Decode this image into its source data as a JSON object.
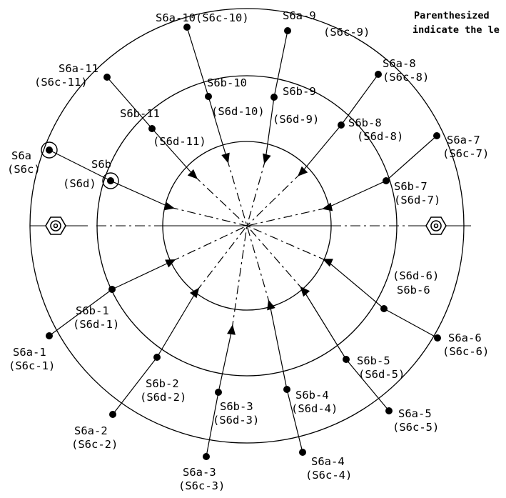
{
  "note": {
    "lines": [
      "Parenthesized",
      "indicate the le"
    ]
  },
  "points": [
    {
      "id": "6a-10",
      "label": "S6a-10(S6c-10)"
    },
    {
      "id": "6a-9",
      "label1": "S6a-9",
      "label2": "(S6c-9)"
    },
    {
      "id": "6a-8",
      "label1": "S6a-8",
      "label2": "(S6c-8)"
    },
    {
      "id": "6a-7",
      "label1": "S6a-7",
      "label2": "(S6c-7)"
    },
    {
      "id": "6a-6",
      "label1": "S6a-6",
      "label2": "(S6c-6)"
    },
    {
      "id": "6a-5",
      "label1": "S6a-5",
      "label2": "(S6c-5)"
    },
    {
      "id": "6a-4",
      "label1": "S6a-4",
      "label2": "(S6c-4)"
    },
    {
      "id": "6a-3",
      "label1": "S6a-3",
      "label2": "(S6c-3)"
    },
    {
      "id": "6a-2",
      "label1": "S6a-2",
      "label2": "(S6c-2)"
    },
    {
      "id": "6a-1",
      "label1": "S6a-1",
      "label2": "(S6c-1)"
    },
    {
      "id": "6a",
      "label1": "S6a",
      "label2": "(S6c)"
    },
    {
      "id": "6a-11",
      "label1": "S6a-11",
      "label2": "(S6c-11)"
    },
    {
      "id": "6b-10",
      "label1": "S6b-10",
      "label2": "(S6d-10)"
    },
    {
      "id": "6b-9",
      "label1": "S6b-9",
      "label2": "(S6d-9)"
    },
    {
      "id": "6b-8",
      "label1": "S6b-8",
      "label2": "(S6d-8)"
    },
    {
      "id": "6b-7",
      "label1": "S6b-7",
      "label2": "(S6d-7)"
    },
    {
      "id": "6b-6",
      "label1": "(S6d-6)",
      "label2": "S6b-6"
    },
    {
      "id": "6b-5",
      "label1": "S6b-5",
      "label2": "(S6d-5)"
    },
    {
      "id": "6b-4",
      "label1": "S6b-4",
      "label2": "(S6d-4)"
    },
    {
      "id": "6b-3",
      "label1": "S6b-3",
      "label2": "(S6d-3)"
    },
    {
      "id": "6b-2",
      "label1": "S6b-2",
      "label2": "(S6d-2)"
    },
    {
      "id": "6b-1",
      "label1": "S6b-1",
      "label2": "(S6d-1)"
    },
    {
      "id": "6b-11",
      "label1": "S6b-11",
      "label2": "(S6d-11)"
    },
    {
      "id": "6b",
      "label1": "S6b",
      "label2": "(S6d)"
    }
  ]
}
